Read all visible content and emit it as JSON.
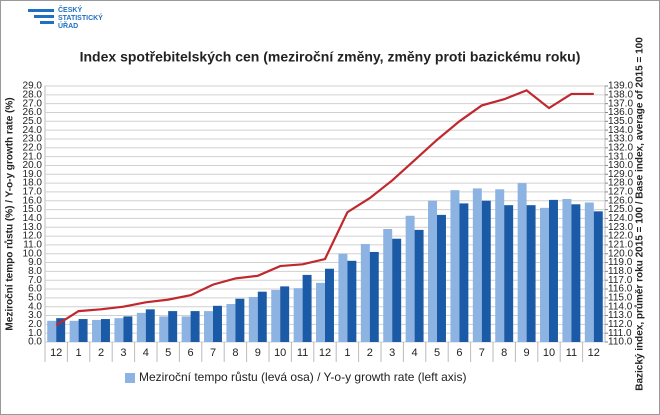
{
  "logo": [
    "ČESKÝ",
    "STATISTICKÝ",
    "ÚŘAD"
  ],
  "chart_data": {
    "type": "bar",
    "title": "Index spotřebitelských cen (meziroční změny, změny proti bazickému roku)",
    "ylabel": "Meziroční tempo růstu (%) / Y-o-y growth rate (%)",
    "y2label": "Bazický index, průměr roku 2015 = 100 / Base index, average of 2015 = 100",
    "categories": [
      "12",
      "1",
      "2",
      "3",
      "4",
      "5",
      "6",
      "7",
      "8",
      "9",
      "10",
      "11",
      "12",
      "1",
      "2",
      "3",
      "4",
      "5",
      "6",
      "7",
      "8",
      "9",
      "10",
      "11",
      "12"
    ],
    "series": [
      {
        "name": "Meziroční tempo růstu (levá osa) / Y-o-y growth rate (left axis)",
        "color": "#8db3e2",
        "type": "bar",
        "values": [
          2.4,
          2.4,
          2.5,
          2.7,
          3.3,
          2.9,
          2.9,
          3.5,
          4.3,
          5.1,
          5.9,
          6.1,
          6.7,
          10.0,
          11.1,
          12.8,
          14.3,
          16.0,
          17.2,
          17.4,
          17.3,
          18.0,
          15.2,
          16.2,
          15.8
        ]
      },
      {
        "color": "#1a5aa6",
        "type": "bar",
        "values": [
          2.7,
          2.6,
          2.6,
          2.9,
          3.7,
          3.5,
          3.5,
          4.1,
          4.9,
          5.7,
          6.3,
          7.6,
          8.3,
          9.2,
          10.2,
          11.7,
          12.7,
          14.4,
          15.7,
          16.0,
          15.5,
          15.5,
          16.1,
          15.6,
          14.8
        ]
      },
      {
        "color": "#c0282e",
        "type": "line",
        "axis": "y2",
        "values": [
          111.9,
          113.5,
          113.7,
          114.0,
          114.5,
          114.8,
          115.3,
          116.5,
          117.2,
          117.5,
          118.6,
          118.8,
          119.4,
          124.7,
          126.3,
          128.3,
          130.6,
          132.9,
          135.0,
          136.8,
          137.5,
          138.5,
          136.5,
          138.1,
          138.1
        ]
      }
    ],
    "ylim": [
      0,
      29
    ],
    "yticks": [
      {
        "value": 0,
        "label": "0.0"
      },
      {
        "value": 1,
        "label": "1.0"
      },
      {
        "value": 2,
        "label": "2.0"
      },
      {
        "value": 3,
        "label": "3.0"
      },
      {
        "value": 4,
        "label": "4.0"
      },
      {
        "value": 5,
        "label": "5.0"
      },
      {
        "value": 6,
        "label": "6.0"
      },
      {
        "value": 7,
        "label": "7.0"
      },
      {
        "value": 8,
        "label": "8.0"
      },
      {
        "value": 9,
        "label": "9.0"
      },
      {
        "value": 10,
        "label": "10.0"
      },
      {
        "value": 11,
        "label": "11.0"
      },
      {
        "value": 12,
        "label": "12.0"
      },
      {
        "value": 13,
        "label": "13.0"
      },
      {
        "value": 14,
        "label": "14.0"
      },
      {
        "value": 15,
        "label": "15.0"
      },
      {
        "value": 16,
        "label": "16.0"
      },
      {
        "value": 17,
        "label": "17.0"
      },
      {
        "value": 18,
        "label": "18.0"
      },
      {
        "value": 19,
        "label": "19.0"
      },
      {
        "value": 20,
        "label": "20.0"
      },
      {
        "value": 21,
        "label": "21.0"
      },
      {
        "value": 22,
        "label": "22.0"
      },
      {
        "value": 23,
        "label": "23.0"
      },
      {
        "value": 24,
        "label": "24.0"
      },
      {
        "value": 25,
        "label": "25.0"
      },
      {
        "value": 26,
        "label": "26.0"
      },
      {
        "value": 27,
        "label": "27.0"
      },
      {
        "value": 28,
        "label": "28.0"
      },
      {
        "value": 29,
        "label": "29.0"
      }
    ],
    "y2lim": [
      110,
      139
    ],
    "y2ticks": [
      {
        "value": 110,
        "label": "110.0"
      },
      {
        "value": 111,
        "label": "111.0"
      },
      {
        "value": 112,
        "label": "112.0"
      },
      {
        "value": 113,
        "label": "113.0"
      },
      {
        "value": 114,
        "label": "114.0"
      },
      {
        "value": 115,
        "label": "115.0"
      },
      {
        "value": 116,
        "label": "116.0"
      },
      {
        "value": 117,
        "label": "117.0"
      },
      {
        "value": 118,
        "label": "118.0"
      },
      {
        "value": 119,
        "label": "119.0"
      },
      {
        "value": 120,
        "label": "120.0"
      },
      {
        "value": 121,
        "label": "121.0"
      },
      {
        "value": 122,
        "label": "122.0"
      },
      {
        "value": 123,
        "label": "123.0"
      },
      {
        "value": 124,
        "label": "124.0"
      },
      {
        "value": 125,
        "label": "125.0"
      },
      {
        "value": 126,
        "label": "126.0"
      },
      {
        "value": 127,
        "label": "127.0"
      },
      {
        "value": 128,
        "label": "128.0"
      },
      {
        "value": 129,
        "label": "129.0"
      },
      {
        "value": 130,
        "label": "130.0"
      },
      {
        "value": 131,
        "label": "131.0"
      },
      {
        "value": 132,
        "label": "132.0"
      },
      {
        "value": 133,
        "label": "133.0"
      },
      {
        "value": 134,
        "label": "134.0"
      },
      {
        "value": 135,
        "label": "135.0"
      },
      {
        "value": 136,
        "label": "136.0"
      },
      {
        "value": 137,
        "label": "137.0"
      },
      {
        "value": 138,
        "label": "138.0"
      },
      {
        "value": 139,
        "label": "139.0"
      }
    ],
    "grid": true,
    "legend": "bottom"
  }
}
